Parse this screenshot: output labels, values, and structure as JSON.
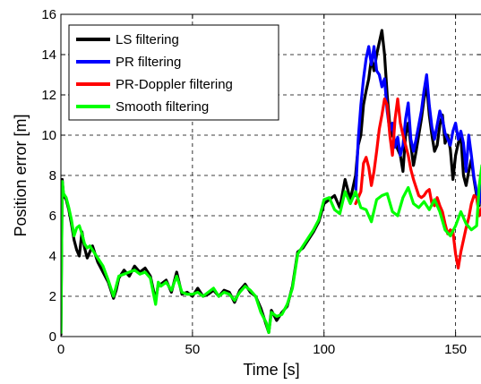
{
  "chart_data": {
    "type": "line",
    "title": "",
    "xlabel": "Time [s]",
    "ylabel": "Position error [m]",
    "xlim": [
      0,
      160
    ],
    "ylim": [
      0,
      16
    ],
    "x_ticks": [
      "0",
      "50",
      "100",
      "150"
    ],
    "y_ticks": [
      "0",
      "2",
      "4",
      "6",
      "8",
      "10",
      "12",
      "14",
      "16"
    ],
    "grid": true,
    "legend_position": "top-left",
    "series": [
      {
        "name": "LS filtering",
        "color": "#000000",
        "x": [
          0,
          0.5,
          1,
          2,
          3,
          4,
          5,
          6,
          7,
          8,
          9,
          10,
          11,
          12,
          14,
          16,
          18,
          20,
          21,
          22,
          24,
          26,
          28,
          30,
          32,
          34,
          36,
          37,
          38,
          40,
          42,
          44,
          46,
          48,
          50,
          52,
          54,
          56,
          58,
          60,
          62,
          64,
          66,
          68,
          70,
          72,
          74,
          76,
          78,
          79,
          80,
          82,
          84,
          86,
          88,
          90,
          92,
          94,
          96,
          98,
          100,
          102,
          104,
          106,
          108,
          110,
          112,
          113,
          114,
          115,
          116,
          117,
          118,
          119,
          120,
          121,
          122,
          123,
          124,
          125,
          126,
          127,
          128,
          129,
          130,
          131,
          132,
          133,
          134,
          135,
          136,
          137,
          138,
          139,
          140,
          141,
          142,
          143,
          144,
          145,
          146,
          147,
          148,
          149,
          150,
          151,
          152,
          153,
          154,
          155,
          156,
          157,
          158,
          159,
          160
        ],
        "values": [
          0.1,
          7.8,
          7.0,
          6.8,
          6.3,
          5.6,
          4.8,
          4.3,
          4.0,
          5.2,
          4.4,
          3.9,
          4.2,
          4.5,
          3.7,
          3.2,
          2.7,
          1.9,
          2.3,
          2.9,
          3.3,
          3.0,
          3.5,
          3.2,
          3.4,
          3.0,
          1.8,
          2.6,
          2.6,
          2.8,
          2.2,
          3.2,
          2.1,
          2.2,
          2.0,
          2.4,
          2.0,
          2.1,
          2.3,
          2.0,
          2.3,
          2.2,
          1.7,
          2.3,
          2.6,
          2.2,
          2.0,
          1.4,
          0.6,
          0.2,
          1.3,
          0.8,
          1.2,
          1.5,
          2.5,
          4.2,
          4.4,
          4.8,
          5.2,
          5.7,
          6.6,
          6.8,
          7.0,
          6.4,
          7.8,
          6.8,
          8.0,
          9.5,
          10.0,
          11.5,
          12.2,
          12.8,
          13.8,
          13.2,
          14.0,
          14.6,
          15.2,
          14.0,
          12.0,
          10.5,
          10.0,
          9.7,
          9.3,
          9.0,
          8.2,
          10.0,
          10.6,
          9.5,
          8.5,
          9.2,
          10.0,
          10.8,
          11.8,
          12.5,
          11.0,
          10.0,
          9.2,
          9.5,
          10.5,
          11.0,
          9.6,
          10.0,
          9.3,
          7.8,
          9.0,
          9.6,
          10.0,
          8.0,
          7.5,
          8.2,
          8.8,
          7.8,
          7.0,
          6.5,
          8.3
        ]
      },
      {
        "name": "PR filtering",
        "color": "#0000ff",
        "x": [
          112,
          113,
          114,
          115,
          116,
          117,
          118,
          119,
          120,
          121,
          122,
          123,
          124,
          125,
          126,
          127,
          128,
          129,
          130,
          131,
          132,
          133,
          134,
          135,
          136,
          137,
          138,
          139,
          140,
          141,
          142,
          143,
          144,
          145,
          146,
          147,
          148,
          149,
          150,
          151,
          152,
          153,
          154,
          155,
          156,
          157,
          158,
          159,
          160
        ],
        "values": [
          7.0,
          9.8,
          11.5,
          12.8,
          13.8,
          14.4,
          13.5,
          14.4,
          13.2,
          13.0,
          12.4,
          12.8,
          11.2,
          10.2,
          10.6,
          9.4,
          9.9,
          9.0,
          9.5,
          10.8,
          11.6,
          9.8,
          9.2,
          9.8,
          10.5,
          11.2,
          12.2,
          13.0,
          11.5,
          10.4,
          9.8,
          10.5,
          11.2,
          10.8,
          10.1,
          9.8,
          9.5,
          10.2,
          10.6,
          9.8,
          10.2,
          9.6,
          8.2,
          10.0,
          9.0,
          7.9,
          7.2,
          6.6,
          8.0
        ]
      },
      {
        "name": "PR-Doppler filtering",
        "color": "#ff0000",
        "x": [
          112,
          114,
          115,
          116,
          117,
          118,
          119,
          120,
          121,
          122,
          123,
          124,
          125,
          126,
          127,
          128,
          129,
          130,
          131,
          132,
          133,
          134,
          135,
          136,
          137,
          138,
          139,
          140,
          141,
          142,
          143,
          144,
          145,
          146,
          147,
          148,
          149,
          150,
          151,
          152,
          153,
          154,
          155,
          156,
          157,
          158,
          159,
          160
        ],
        "values": [
          6.6,
          7.2,
          8.6,
          8.9,
          8.4,
          7.5,
          8.2,
          9.2,
          10.3,
          11.0,
          11.8,
          11.5,
          10.0,
          9.0,
          10.8,
          11.8,
          10.6,
          10.0,
          9.5,
          9.0,
          8.3,
          7.8,
          7.4,
          7.0,
          6.9,
          7.0,
          7.2,
          7.3,
          6.6,
          6.5,
          6.9,
          6.5,
          6.2,
          5.6,
          5.1,
          5.3,
          5.2,
          4.1,
          3.4,
          4.2,
          4.8,
          5.4,
          5.9,
          6.6,
          7.0,
          6.9,
          6.0,
          6.4
        ]
      },
      {
        "name": "Smooth filtering",
        "color": "#00ff00",
        "x": [
          0,
          0.5,
          1,
          2,
          3,
          4,
          5,
          6,
          7,
          8,
          9,
          10,
          11,
          12,
          14,
          16,
          18,
          20,
          21,
          22,
          24,
          26,
          28,
          30,
          32,
          34,
          36,
          37,
          38,
          40,
          42,
          44,
          46,
          48,
          50,
          52,
          54,
          56,
          58,
          60,
          62,
          64,
          66,
          68,
          70,
          72,
          74,
          76,
          78,
          79,
          80,
          82,
          84,
          86,
          88,
          90,
          92,
          94,
          96,
          98,
          100,
          102,
          104,
          106,
          108,
          110,
          112,
          114,
          116,
          118,
          120,
          122,
          124,
          126,
          128,
          130,
          132,
          134,
          136,
          138,
          140,
          142,
          144,
          146,
          148,
          150,
          152,
          154,
          156,
          158,
          159,
          160
        ],
        "values": [
          0.2,
          7.7,
          7.1,
          6.9,
          6.4,
          5.8,
          5.0,
          5.4,
          5.5,
          5.1,
          4.6,
          4.4,
          4.5,
          4.3,
          3.9,
          3.5,
          2.8,
          2.0,
          2.5,
          3.0,
          3.1,
          3.2,
          3.3,
          3.1,
          3.2,
          2.9,
          1.6,
          2.7,
          2.5,
          2.7,
          2.3,
          3.0,
          2.2,
          2.1,
          2.1,
          2.2,
          2.0,
          2.2,
          2.4,
          2.0,
          2.2,
          2.1,
          1.8,
          2.2,
          2.5,
          2.3,
          2.0,
          1.2,
          0.7,
          0.2,
          1.2,
          1.0,
          1.1,
          1.6,
          2.4,
          4.1,
          4.5,
          4.9,
          5.3,
          5.8,
          6.8,
          6.9,
          6.3,
          6.1,
          7.2,
          6.6,
          7.2,
          6.4,
          6.3,
          5.7,
          6.8,
          7.0,
          7.1,
          6.2,
          6.0,
          6.9,
          7.4,
          6.6,
          6.4,
          6.7,
          6.3,
          6.8,
          6.2,
          5.3,
          5.0,
          5.5,
          6.2,
          5.6,
          5.3,
          5.5,
          7.5,
          8.5
        ]
      }
    ]
  }
}
